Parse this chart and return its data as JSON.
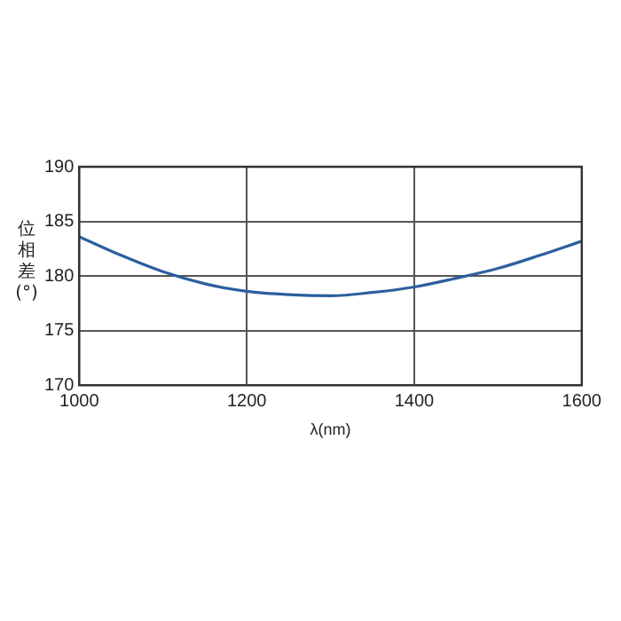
{
  "chart_data": {
    "type": "line",
    "xlabel": "λ(nm)",
    "ylabel": "位相差(°)",
    "x": [
      1000,
      1050,
      1100,
      1150,
      1200,
      1250,
      1300,
      1350,
      1400,
      1450,
      1500,
      1550,
      1600
    ],
    "series": [
      {
        "color": "#2b5f9e",
        "values": [
          183.6,
          181.9,
          180.4,
          179.3,
          178.6,
          178.3,
          178.2,
          178.5,
          179.0,
          179.8,
          180.7,
          181.9,
          183.2
        ]
      }
    ],
    "xlim": [
      1000,
      1600
    ],
    "xticks": [
      1000,
      1200,
      1400,
      1600
    ],
    "ylim": [
      170,
      190
    ],
    "yticks": [
      170,
      175,
      180,
      185,
      190
    ],
    "grid": true,
    "legend": false,
    "marker": "none",
    "line_style": "solid"
  }
}
